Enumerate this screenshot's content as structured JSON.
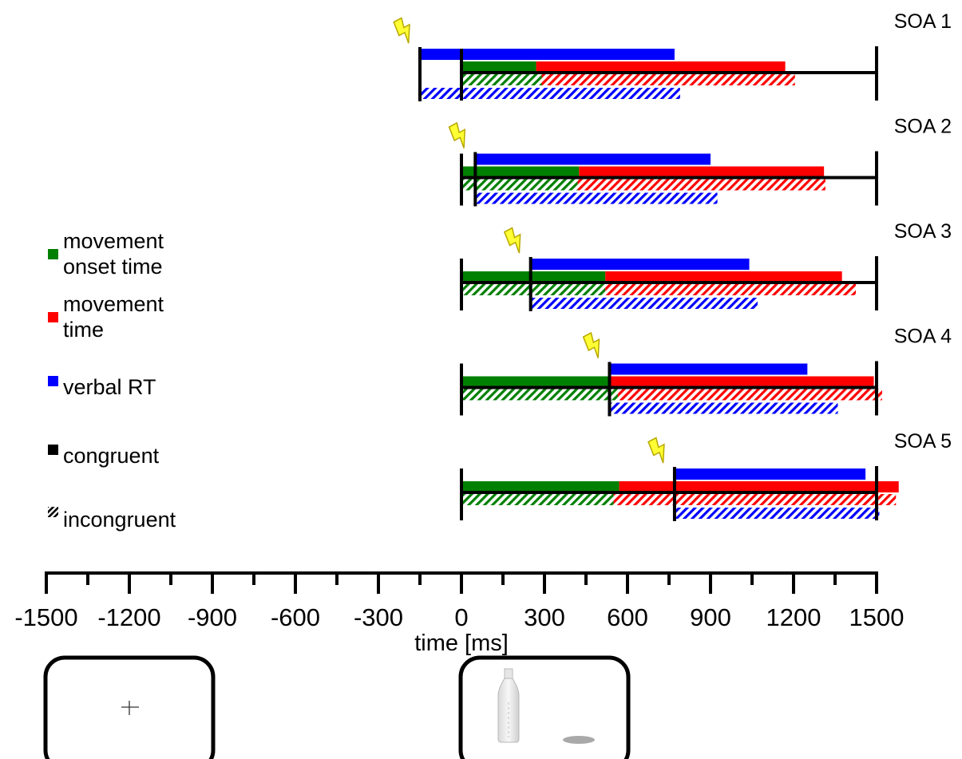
{
  "chart_data": {
    "type": "bar",
    "xlabel": "time [ms]",
    "xlim": [
      -1500,
      1500
    ],
    "x_ticks": [
      -1500,
      -1200,
      -900,
      -600,
      -300,
      0,
      300,
      600,
      900,
      1200,
      1500
    ],
    "x_tick_labels": [
      "-1500",
      "-1200",
      "-900",
      "-600",
      "-300",
      "0",
      "300",
      "600",
      "900",
      "1200",
      "1500"
    ],
    "x_minor_tick_step": 150,
    "legend": {
      "placement": "left",
      "items": [
        {
          "label": "movement onset time",
          "label_lines": [
            "movement",
            "onset time"
          ],
          "color": "#008000",
          "pattern": "solid"
        },
        {
          "label": "movement time",
          "label_lines": [
            "movement",
            "time"
          ],
          "color": "#ff0000",
          "pattern": "solid"
        },
        {
          "label": "verbal RT",
          "label_lines": [
            "verbal RT"
          ],
          "color": "#0000ff",
          "pattern": "solid"
        },
        {
          "label": "congruent",
          "label_lines": [
            "congruent"
          ],
          "color": "#000000",
          "pattern": "solid"
        },
        {
          "label": "incongruent",
          "label_lines": [
            "incongruent"
          ],
          "color": "#000000",
          "pattern": "hatched"
        }
      ]
    },
    "panels": [
      {
        "label": "SOA 1",
        "soa_ms": -150,
        "congruent": {
          "movement_onset_time": 270,
          "movement_time_end": 1170,
          "verbal_rt_end": 770
        },
        "incongruent": {
          "movement_onset_time": 290,
          "movement_time_end": 1205,
          "verbal_rt_end": 790
        }
      },
      {
        "label": "SOA 2",
        "soa_ms": 50,
        "congruent": {
          "movement_onset_time": 425,
          "movement_time_end": 1310,
          "verbal_rt_end": 900
        },
        "incongruent": {
          "movement_onset_time": 420,
          "movement_time_end": 1315,
          "verbal_rt_end": 925
        }
      },
      {
        "label": "SOA 3",
        "soa_ms": 250,
        "congruent": {
          "movement_onset_time": 520,
          "movement_time_end": 1375,
          "verbal_rt_end": 1040
        },
        "incongruent": {
          "movement_onset_time": 520,
          "movement_time_end": 1425,
          "verbal_rt_end": 1070
        }
      },
      {
        "label": "SOA 4",
        "soa_ms": 535,
        "congruent": {
          "movement_onset_time": 535,
          "movement_time_end": 1490,
          "verbal_rt_end": 1250
        },
        "incongruent": {
          "movement_onset_time": 565,
          "movement_time_end": 1520,
          "verbal_rt_end": 1360
        }
      },
      {
        "label": "SOA 5",
        "soa_ms": 770,
        "congruent": {
          "movement_onset_time": 570,
          "movement_time_end": 1580,
          "verbal_rt_end": 1460
        },
        "incongruent": {
          "movement_onset_time": 550,
          "movement_time_end": 1570,
          "verbal_rt_end": 1510
        }
      }
    ],
    "stimulus_screens": [
      {
        "name": "fixation-screen",
        "content": "fixation cross"
      },
      {
        "name": "target-screen",
        "content": "bottle"
      }
    ]
  }
}
